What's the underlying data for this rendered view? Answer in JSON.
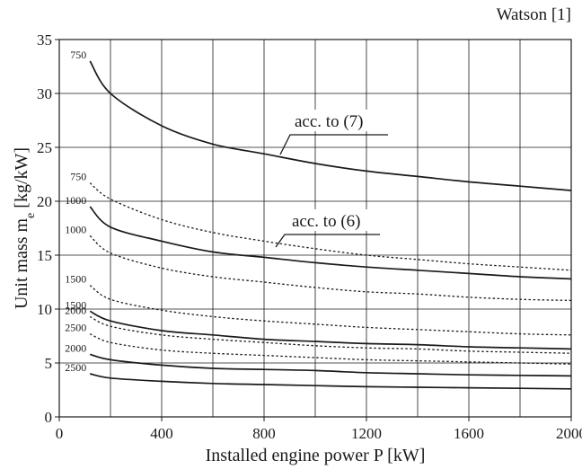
{
  "chart_data": {
    "type": "line",
    "source_label": "Watson [1]",
    "xlabel": "Installed engine power P [kW]",
    "ylabel_main": "Unit mass m",
    "ylabel_sub": "e",
    "ylabel_unit": " [kg/kW]",
    "xlim": [
      0,
      2000
    ],
    "ylim": [
      0,
      35
    ],
    "x_ticks": [
      0,
      400,
      800,
      1200,
      1600,
      2000
    ],
    "y_ticks": [
      0,
      5,
      10,
      15,
      20,
      25,
      30,
      35
    ],
    "grid": true,
    "annotations": [
      {
        "text": "acc. to (7)",
        "target_series": "acc. to (7) – 750"
      },
      {
        "text": "acc. to (6)",
        "target_series": "acc. to (6) – 750"
      }
    ],
    "series": [
      {
        "name": "acc. to (7) – 750",
        "label": "750",
        "style": "solid",
        "x": [
          120,
          200,
          400,
          600,
          800,
          1000,
          1200,
          1400,
          1600,
          1800,
          2000
        ],
        "y": [
          33,
          30,
          27,
          25.3,
          24.4,
          23.5,
          22.8,
          22.3,
          21.8,
          21.4,
          21
        ]
      },
      {
        "name": "acc. to (7) – 1000",
        "label": "1000",
        "style": "solid",
        "x": [
          120,
          200,
          400,
          600,
          800,
          1000,
          1200,
          1400,
          1600,
          1800,
          2000
        ],
        "y": [
          19.5,
          17.6,
          16.3,
          15.3,
          14.8,
          14.3,
          13.9,
          13.6,
          13.3,
          13,
          12.8
        ]
      },
      {
        "name": "acc. to (7) – 1500",
        "label": "1500",
        "style": "solid",
        "x": [
          120,
          200,
          400,
          600,
          800,
          1000,
          1200,
          1400,
          1600,
          1800,
          2000
        ],
        "y": [
          9.8,
          8.9,
          8.0,
          7.6,
          7.2,
          7.0,
          6.8,
          6.7,
          6.5,
          6.4,
          6.3
        ]
      },
      {
        "name": "acc. to (7) – 2000",
        "label": "2000",
        "style": "solid",
        "x": [
          120,
          200,
          400,
          600,
          800,
          1000,
          1200,
          1400,
          1600,
          1800,
          2000
        ],
        "y": [
          5.8,
          5.3,
          4.8,
          4.5,
          4.4,
          4.3,
          4.1,
          4.0,
          3.9,
          3.85,
          3.8
        ]
      },
      {
        "name": "acc. to (7) – 2500",
        "label": "2500",
        "style": "solid",
        "x": [
          120,
          200,
          400,
          600,
          800,
          1000,
          1200,
          1400,
          1600,
          1800,
          2000
        ],
        "y": [
          4.0,
          3.6,
          3.3,
          3.1,
          3.0,
          2.9,
          2.8,
          2.75,
          2.7,
          2.65,
          2.6
        ]
      },
      {
        "name": "acc. to (6) – 750",
        "label": "750",
        "style": "dotted",
        "x": [
          120,
          200,
          400,
          600,
          800,
          1000,
          1200,
          1400,
          1600,
          1800,
          2000
        ],
        "y": [
          21.7,
          20.2,
          18.3,
          17.1,
          16.3,
          15.6,
          15.0,
          14.6,
          14.2,
          13.9,
          13.6
        ]
      },
      {
        "name": "acc. to (6) – 1000",
        "label": "1000",
        "style": "dotted",
        "x": [
          120,
          200,
          400,
          600,
          800,
          1000,
          1200,
          1400,
          1600,
          1800,
          2000
        ],
        "y": [
          16.8,
          15.2,
          13.8,
          13.0,
          12.5,
          12.0,
          11.6,
          11.4,
          11.1,
          10.9,
          10.8
        ]
      },
      {
        "name": "acc. to (6) – 1500",
        "label": "1500",
        "style": "dotted",
        "x": [
          120,
          200,
          400,
          600,
          800,
          1000,
          1200,
          1400,
          1600,
          1800,
          2000
        ],
        "y": [
          12.2,
          10.9,
          9.9,
          9.3,
          8.9,
          8.6,
          8.3,
          8.1,
          7.9,
          7.7,
          7.6
        ]
      },
      {
        "name": "acc. to (6) – 2000",
        "label": "2000",
        "style": "dotted",
        "x": [
          120,
          200,
          400,
          600,
          800,
          1000,
          1200,
          1400,
          1600,
          1800,
          2000
        ],
        "y": [
          9.3,
          8.4,
          7.6,
          7.2,
          6.9,
          6.6,
          6.4,
          6.3,
          6.1,
          6.0,
          5.9
        ]
      },
      {
        "name": "acc. to (6) – 2500",
        "label": "2500",
        "style": "dotted",
        "x": [
          120,
          200,
          400,
          600,
          800,
          1000,
          1200,
          1400,
          1600,
          1800,
          2000
        ],
        "y": [
          7.7,
          6.9,
          6.2,
          5.9,
          5.7,
          5.5,
          5.3,
          5.2,
          5.1,
          5.0,
          4.9
        ]
      }
    ]
  }
}
